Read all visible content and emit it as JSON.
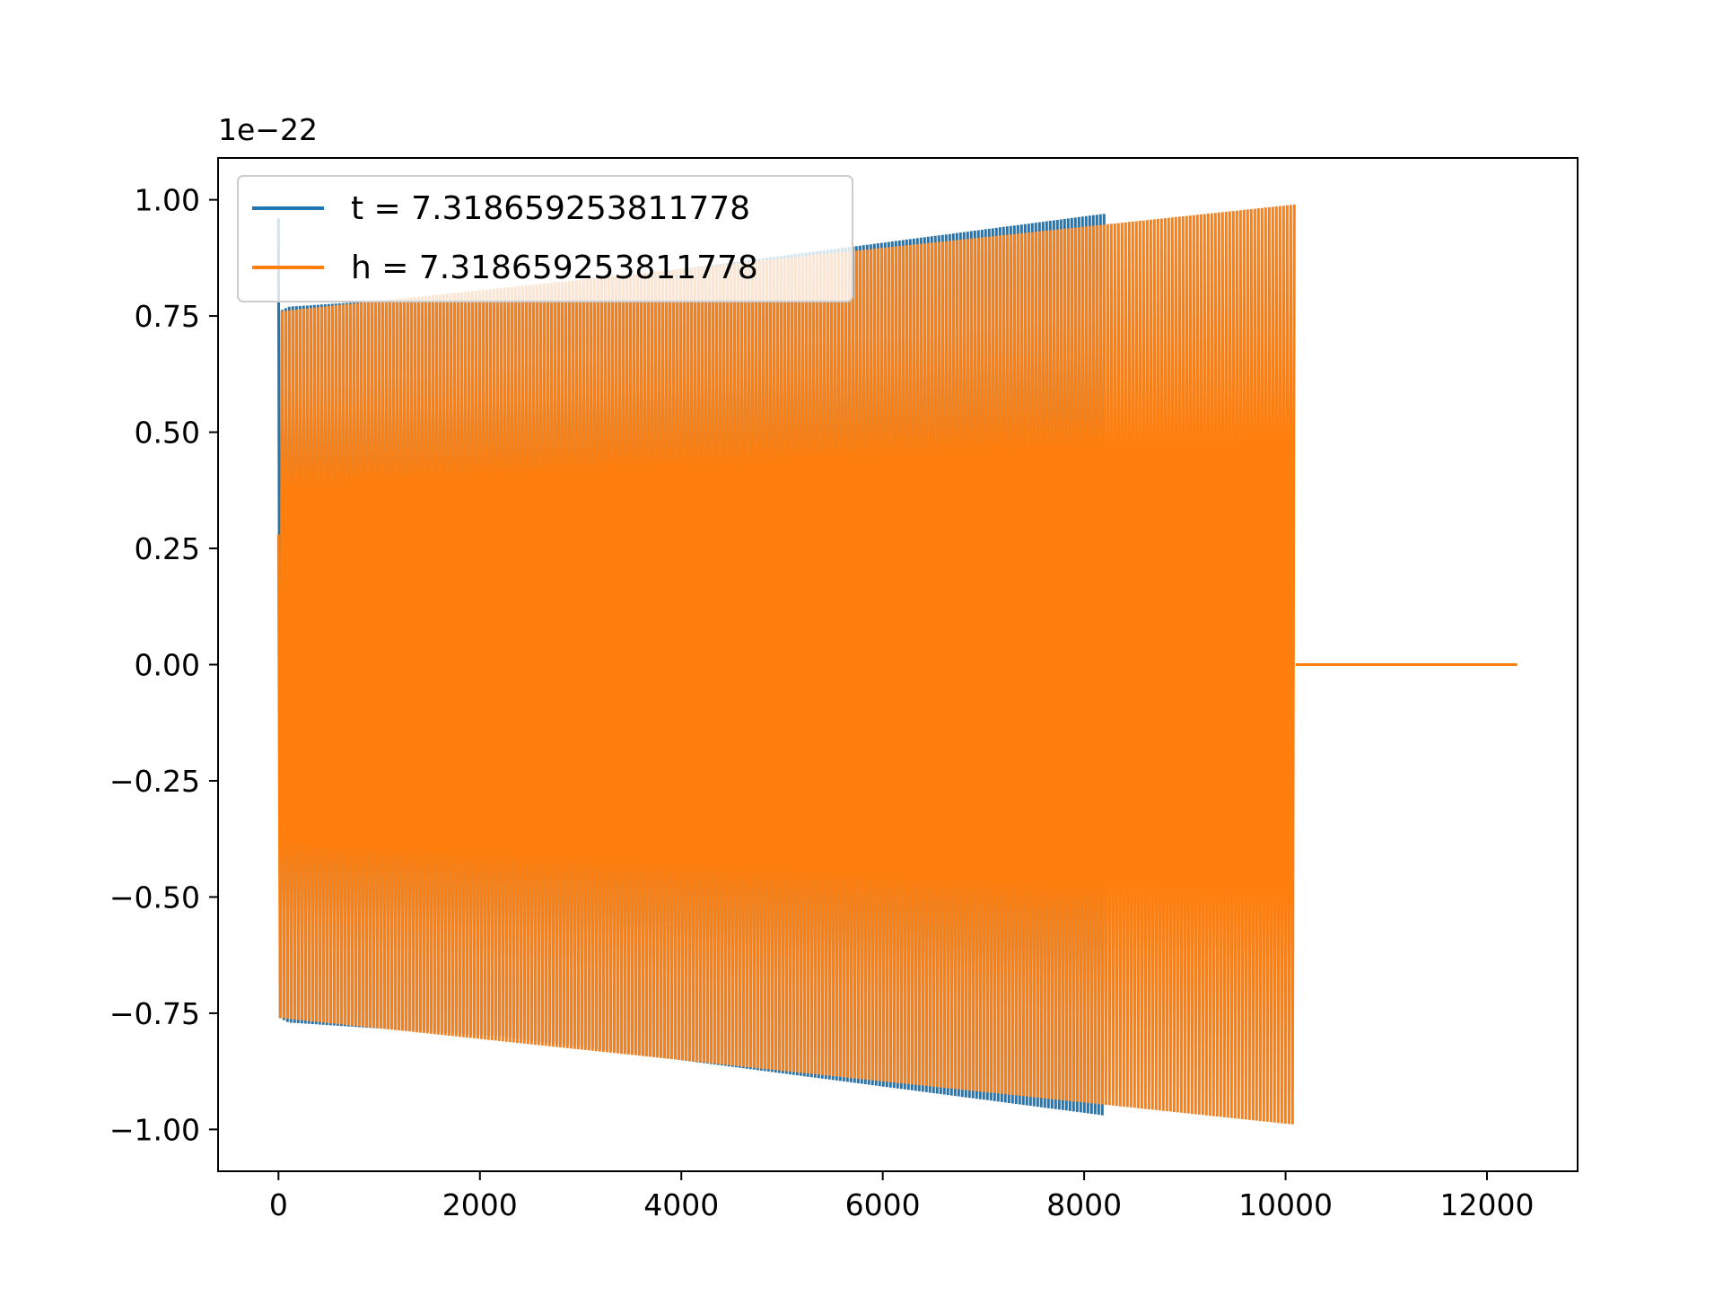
{
  "chart_data": {
    "type": "line",
    "title": "",
    "xlabel": "",
    "ylabel": "",
    "y_offset_label": "1e−22",
    "xlim": [
      -600,
      12900
    ],
    "ylim": [
      -1.09,
      1.09
    ],
    "x_ticks": [
      0,
      2000,
      4000,
      6000,
      8000,
      10000,
      12000
    ],
    "x_tick_labels": [
      "0",
      "2000",
      "4000",
      "6000",
      "8000",
      "10000",
      "12000"
    ],
    "y_ticks": [
      1.0,
      0.75,
      0.5,
      0.25,
      0.0,
      -0.25,
      -0.5,
      -0.75,
      -1.0
    ],
    "y_tick_labels": [
      "1.00",
      "0.75",
      "0.50",
      "0.25",
      "0.00",
      "−0.25",
      "−0.50",
      "−0.75",
      "−1.00"
    ],
    "grid": false,
    "legend_position": "top-left",
    "series": [
      {
        "name": "t = 7.318659253811778",
        "color": "#1f77b4",
        "kind": "oscillation-envelope",
        "envelope": {
          "x": [
            0,
            10,
            100,
            2200,
            8200
          ],
          "upper": [
            0.96,
            0.76,
            0.77,
            0.8,
            0.97
          ],
          "lower": [
            -0.85,
            -0.76,
            -0.77,
            -0.8,
            -0.97
          ]
        },
        "x_end": 8200
      },
      {
        "name": "h = 7.318659253811778",
        "color": "#ff7f0e",
        "kind": "oscillation-envelope",
        "envelope": {
          "x": [
            0,
            10,
            10100
          ],
          "upper": [
            0.28,
            0.76,
            0.99
          ],
          "lower": [
            -0.7,
            -0.76,
            -0.99
          ]
        },
        "x_end": 10100,
        "tail": {
          "x": [
            10100,
            12300
          ],
          "y": [
            0.0,
            0.0
          ]
        }
      }
    ]
  }
}
